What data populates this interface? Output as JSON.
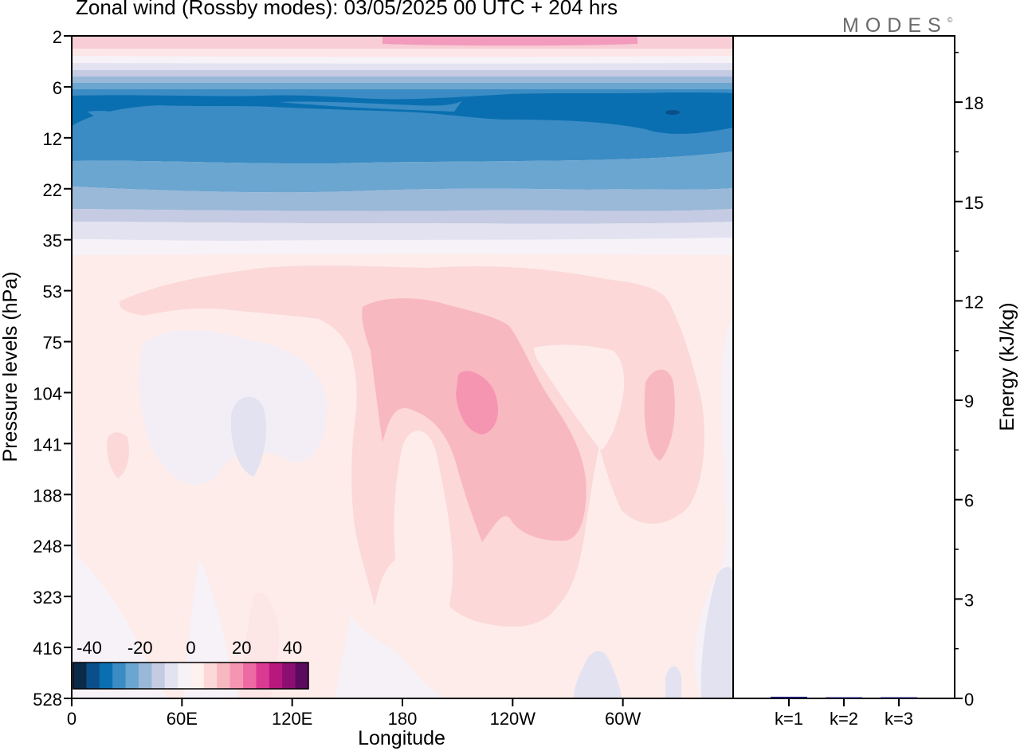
{
  "header": {
    "title": "Zonal wind (Rossby modes):  03/05/2025  00 UTC  + 204 hrs",
    "logo_text": "MODES",
    "logo_mark": "©"
  },
  "chart_data": [
    {
      "type": "heatmap",
      "xlabel": "Longitude",
      "ylabel": "Pressure levels (hPa)",
      "x_ticks": [
        "0",
        "60E",
        "120E",
        "180",
        "120W",
        "60W"
      ],
      "y_ticks": [
        "2",
        "6",
        "12",
        "22",
        "35",
        "53",
        "75",
        "104",
        "141",
        "188",
        "248",
        "323",
        "416",
        "528"
      ],
      "y_scale": "log",
      "colorbar": {
        "tick_labels": [
          "-40",
          "-20",
          "0",
          "20",
          "40"
        ],
        "colors": [
          "#0b2a4a",
          "#0a4f8a",
          "#0a6fb0",
          "#3b8cc4",
          "#6aa6d0",
          "#9ab8d8",
          "#c4cbe2",
          "#e2e2f0",
          "#f6f2f8",
          "#fff2ee",
          "#fcd8d8",
          "#f8b8c0",
          "#f595b2",
          "#ed6aa4",
          "#db3a93",
          "#b8177e",
          "#8a0f70",
          "#5c0a60"
        ],
        "placement": "bottom-left"
      },
      "fields": [
        {
          "name": "",
          "approx_value": 12,
          "region": "top stratosphere band near 2 hPa"
        },
        {
          "name": "",
          "approx_value": -32,
          "region": "easterly jet 7-15 hPa"
        },
        {
          "name": "",
          "approx_value": 16,
          "region": "positive maximum near 180-120W, 104-141 hPa"
        },
        {
          "name": "",
          "approx_value": 8,
          "region": "positive lobe near 60W, 104-141 hPa"
        }
      ]
    },
    {
      "type": "bar",
      "categories": [
        "k=1",
        "k=2",
        "k=3"
      ],
      "values": [
        0.05,
        0.02,
        0.01
      ],
      "ylabel": "Energy (kJ/kg)",
      "y_ticks": [
        "0",
        "3",
        "6",
        "9",
        "12",
        "15",
        "18"
      ],
      "ylim": [
        0,
        20
      ],
      "bar_color": "#1a1a6e"
    }
  ]
}
